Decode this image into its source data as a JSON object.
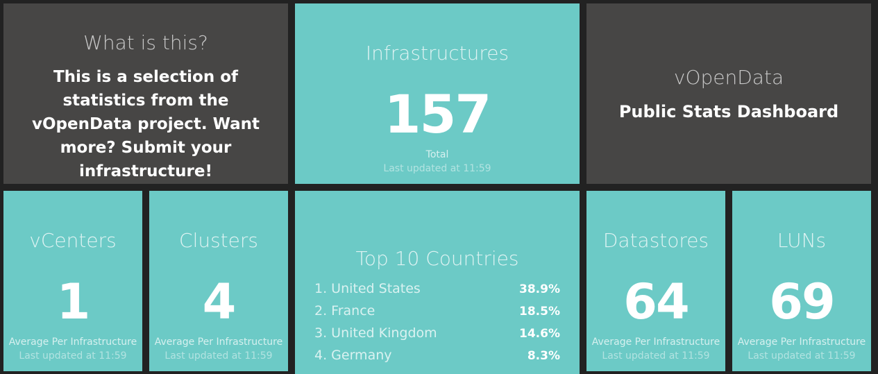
{
  "info": {
    "title": "What is this?",
    "text": "This is a selection of statistics from the vOpenData project. Want more? Submit your infrastructure!"
  },
  "infrastructures": {
    "title": "Infrastructures",
    "value": "157",
    "more_info": "Total",
    "updated": "Last updated at 11:59"
  },
  "branding": {
    "title": "vOpenData",
    "subtitle": "Public Stats Dashboard"
  },
  "vcenters": {
    "title": "vCenters",
    "value": "1",
    "more_info": "Average Per Infrastructure",
    "updated": "Last updated at 11:59"
  },
  "clusters": {
    "title": "Clusters",
    "value": "4",
    "more_info": "Average Per Infrastructure",
    "updated": "Last updated at 11:59"
  },
  "countries": {
    "title": "Top 10 Countries",
    "items": [
      {
        "label": "1. United States",
        "value": "38.9%"
      },
      {
        "label": "2. France",
        "value": "18.5%"
      },
      {
        "label": "3. United Kingdom",
        "value": "14.6%"
      },
      {
        "label": "4. Germany",
        "value": "8.3%"
      }
    ]
  },
  "datastores": {
    "title": "Datastores",
    "value": "64",
    "more_info": "Average Per Infrastructure",
    "updated": "Last updated at 11:59"
  },
  "luns": {
    "title": "LUNs",
    "value": "69",
    "more_info": "Average Per Infrastructure",
    "updated": "Last updated at 11:59"
  },
  "colors": {
    "background": "#222222",
    "dark_tile": "#474645",
    "teal_tile": "#6ccac6"
  }
}
